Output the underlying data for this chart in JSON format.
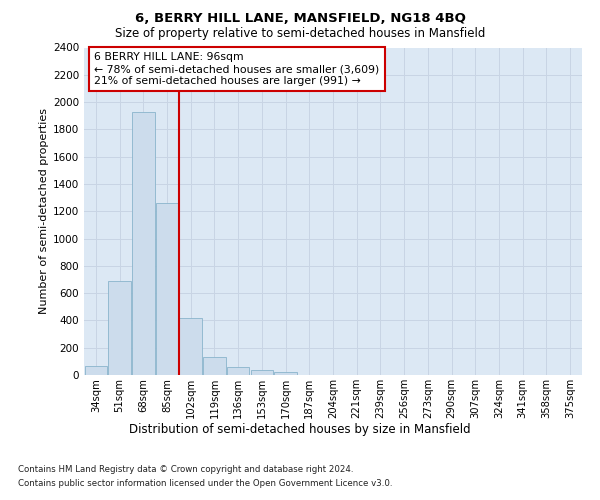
{
  "title1": "6, BERRY HILL LANE, MANSFIELD, NG18 4BQ",
  "title2": "Size of property relative to semi-detached houses in Mansfield",
  "xlabel": "Distribution of semi-detached houses by size in Mansfield",
  "ylabel": "Number of semi-detached properties",
  "categories": [
    "34sqm",
    "51sqm",
    "68sqm",
    "85sqm",
    "102sqm",
    "119sqm",
    "136sqm",
    "153sqm",
    "170sqm",
    "187sqm",
    "204sqm",
    "221sqm",
    "239sqm",
    "256sqm",
    "273sqm",
    "290sqm",
    "307sqm",
    "324sqm",
    "341sqm",
    "358sqm",
    "375sqm"
  ],
  "values": [
    68,
    690,
    1930,
    1260,
    420,
    135,
    55,
    35,
    20,
    0,
    0,
    0,
    0,
    0,
    0,
    0,
    0,
    0,
    0,
    0,
    0
  ],
  "bar_color": "#ccdcec",
  "bar_edge_color": "#8ab4cc",
  "property_line_x": 3.5,
  "annotation_text1": "6 BERRY HILL LANE: 96sqm",
  "annotation_text2": "← 78% of semi-detached houses are smaller (3,609)",
  "annotation_text3": "21% of semi-detached houses are larger (991) →",
  "annotation_box_facecolor": "#ffffff",
  "annotation_box_edgecolor": "#cc0000",
  "line_color": "#cc0000",
  "ylim": [
    0,
    2400
  ],
  "yticks": [
    0,
    200,
    400,
    600,
    800,
    1000,
    1200,
    1400,
    1600,
    1800,
    2000,
    2200,
    2400
  ],
  "grid_color": "#c8d4e4",
  "background_color": "#dce8f4",
  "footnote1": "Contains HM Land Registry data © Crown copyright and database right 2024.",
  "footnote2": "Contains public sector information licensed under the Open Government Licence v3.0."
}
